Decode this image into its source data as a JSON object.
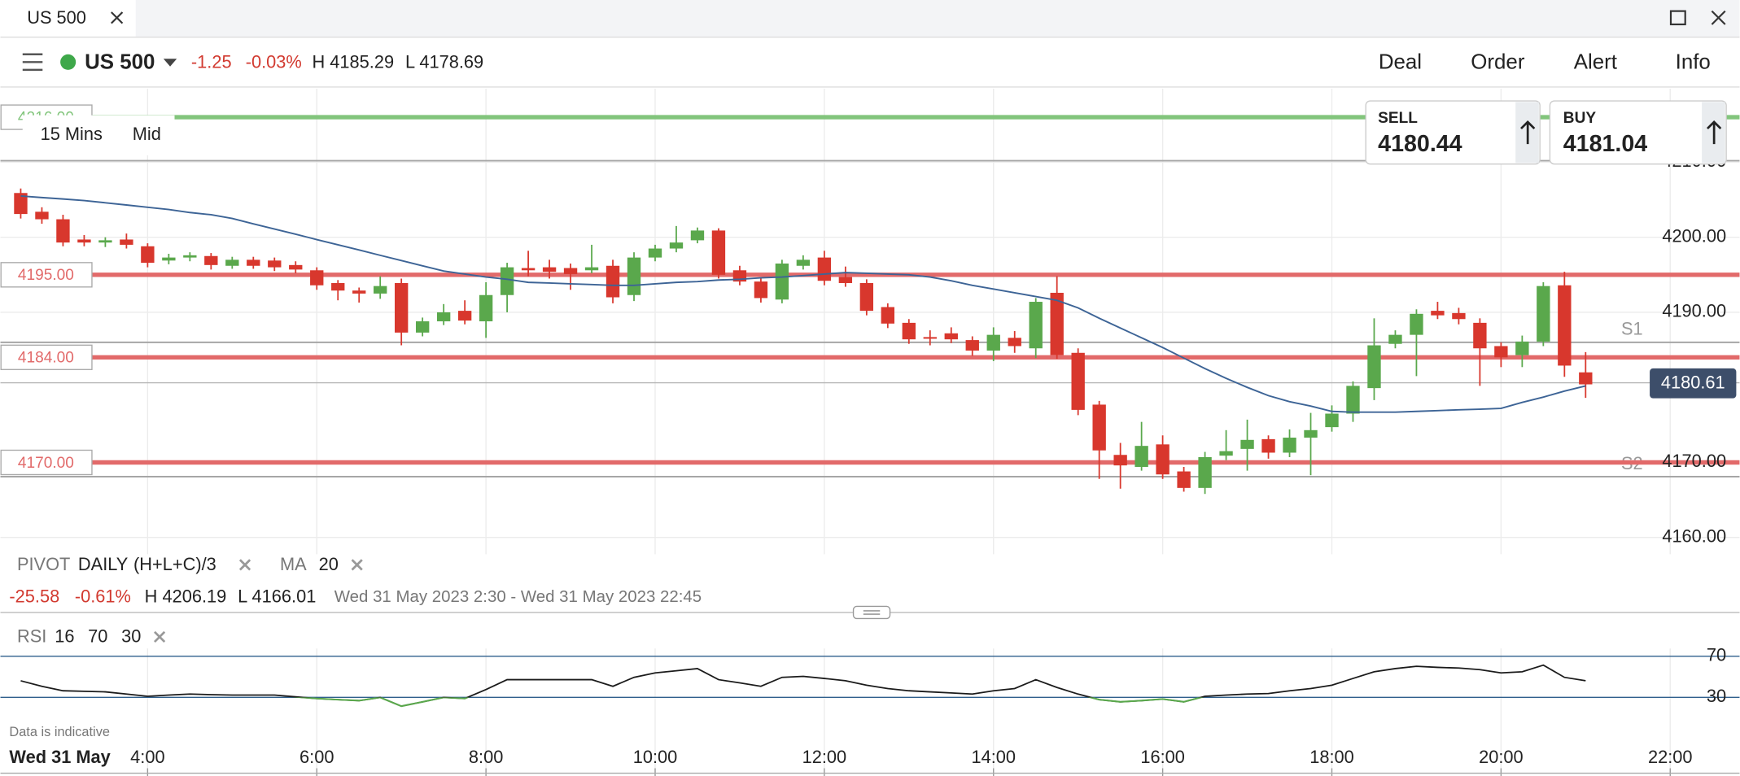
{
  "window": {
    "tab": "US 500"
  },
  "toolbar": {
    "instrument": "US 500",
    "change": "-1.25",
    "change_pct": "-0.03%",
    "high": "H 4185.29",
    "low": "L 4178.69",
    "actions": [
      "Deal",
      "Order",
      "Alert",
      "Info"
    ]
  },
  "chart_settings": {
    "interval": "15 Mins",
    "price_type": "Mid"
  },
  "quotes": {
    "sell_label": "SELL",
    "sell": "4180.44",
    "buy_label": "BUY",
    "buy": "4181.04"
  },
  "indicators": {
    "pivot": "PIVOT",
    "pivot_period": "DAILY",
    "pivot_formula": "(H+L+C)/3",
    "ma": "MA",
    "ma_period": 20
  },
  "summary": {
    "change": "-25.58",
    "change_pct": "-0.61%",
    "high": "H 4206.19",
    "low": "L 4166.01",
    "range": "Wed 31 May 2023 2:30 - Wed 31 May 2023 22:45"
  },
  "disclaimer": "Data is indicative",
  "date_label": "Wed 31 May",
  "chart_data": [
    {
      "type": "candlestick",
      "up_color": "#5aa84c",
      "down_color": "#d8372d",
      "ma_color": "#3d6496",
      "grid": true,
      "x": [
        2.5,
        2.75,
        3,
        3.25,
        3.5,
        3.75,
        4,
        4.25,
        4.5,
        4.75,
        5,
        5.25,
        5.5,
        5.75,
        6,
        6.25,
        6.5,
        6.75,
        7,
        7.25,
        7.5,
        7.75,
        8,
        8.25,
        8.5,
        8.75,
        9,
        9.25,
        9.5,
        9.75,
        10,
        10.25,
        10.5,
        10.75,
        11,
        11.25,
        11.5,
        11.75,
        12,
        12.25,
        12.5,
        12.75,
        13,
        13.25,
        13.5,
        13.75,
        14,
        14.25,
        14.5,
        14.75,
        15,
        15.25,
        15.5,
        15.75,
        16,
        16.25,
        16.5,
        16.75,
        17,
        17.25,
        17.5,
        17.75,
        18,
        18.25,
        18.5,
        18.75,
        19,
        19.25,
        19.5,
        19.75,
        20,
        20.25,
        20.5,
        20.75,
        21
      ],
      "open": [
        4205.9,
        4203.4,
        4202.4,
        4199.7,
        4199.3,
        4199.7,
        4198.8,
        4196.9,
        4197.3,
        4197.5,
        4196.2,
        4197.0,
        4196.9,
        4196.3,
        4195.6,
        4193.9,
        4192.9,
        4192.5,
        4193.9,
        4187.3,
        4188.8,
        4190.2,
        4188.8,
        4192.3,
        4195.9,
        4196.0,
        4195.9,
        4195.6,
        4196.2,
        4192.3,
        4197.3,
        4198.5,
        4199.6,
        4200.9,
        4195.6,
        4194.1,
        4191.7,
        4196.2,
        4197.3,
        4194.7,
        4193.9,
        4190.7,
        4188.6,
        4186.7,
        4187.2,
        4186.3,
        4184.9,
        4186.6,
        4185.2,
        4192.6,
        4184.6,
        4177.7,
        4171.0,
        4169.4,
        4172.4,
        4168.8,
        4166.6,
        4170.9,
        4171.8,
        4173.1,
        4171.3,
        4173.3,
        4174.7,
        4176.5,
        4179.9,
        4185.8,
        4187.0,
        4190.2,
        4189.9,
        4188.6,
        4185.5,
        4184.3,
        4186.1,
        4193.6,
        4182.0
      ],
      "high": [
        4206.5,
        4204,
        4203,
        4200.3,
        4200,
        4200.5,
        4199.2,
        4197.8,
        4198,
        4197.9,
        4197.4,
        4197.4,
        4197.3,
        4196.8,
        4196,
        4194.3,
        4193.3,
        4194.8,
        4194.5,
        4189.3,
        4191.1,
        4191.6,
        4194,
        4196.6,
        4198.2,
        4197,
        4196.5,
        4199,
        4197,
        4198,
        4199,
        4201.5,
        4201.3,
        4201.2,
        4196.2,
        4194.6,
        4197,
        4197.6,
        4198.2,
        4196.1,
        4194.4,
        4191.2,
        4189.1,
        4187.6,
        4188,
        4186.8,
        4188,
        4187.5,
        4191.9,
        4194.8,
        4185.2,
        4178.2,
        4172.6,
        4175.4,
        4173.6,
        4169.4,
        4171.4,
        4174.3,
        4175.7,
        4173.6,
        4174.4,
        4176.6,
        4177.6,
        4180.8,
        4189.2,
        4187.6,
        4190.4,
        4191.4,
        4190.6,
        4189.2,
        4186,
        4186.9,
        4194,
        4195.4,
        4184.7
      ],
      "low": [
        4202.5,
        4201.8,
        4198.8,
        4198.8,
        4198.7,
        4198.5,
        4196,
        4196.4,
        4196.8,
        4195.7,
        4195.8,
        4195.8,
        4195.5,
        4195.2,
        4193,
        4191.6,
        4191.3,
        4191.8,
        4185.6,
        4186.8,
        4188.3,
        4188.4,
        4186.6,
        4190,
        4194.8,
        4194.5,
        4193,
        4195.2,
        4191.2,
        4191.5,
        4196.8,
        4198,
        4199.2,
        4194.5,
        4193.6,
        4191.3,
        4191.2,
        4195.7,
        4193.6,
        4193.4,
        4189.6,
        4187.9,
        4185.8,
        4185.6,
        4185.9,
        4184.2,
        4183.5,
        4184.6,
        4183.9,
        4183.8,
        4176.3,
        4167.8,
        4166.5,
        4168.9,
        4167.8,
        4166.1,
        4165.8,
        4170.3,
        4168.9,
        4170.5,
        4170.7,
        4168.3,
        4174.1,
        4175.4,
        4178.3,
        4185.2,
        4181.5,
        4189.1,
        4188.4,
        4180.2,
        4182.7,
        4182.7,
        4185.5,
        4181.4,
        4178.6
      ],
      "close": [
        4203.1,
        4202.4,
        4199.3,
        4199.3,
        4199.6,
        4199.0,
        4196.6,
        4197.3,
        4197.6,
        4196.3,
        4197.0,
        4196.2,
        4196.0,
        4195.7,
        4193.6,
        4192.9,
        4192.5,
        4193.5,
        4187.3,
        4188.8,
        4190.0,
        4188.9,
        4192.3,
        4196.0,
        4195.6,
        4195.4,
        4195.1,
        4196.0,
        4192.0,
        4197.3,
        4198.5,
        4199.3,
        4200.9,
        4195.0,
        4194.1,
        4191.9,
        4196.5,
        4197.0,
        4194.2,
        4193.9,
        4190.2,
        4188.5,
        4186.4,
        4186.6,
        4186.4,
        4184.9,
        4187.0,
        4185.5,
        4191.4,
        4184.3,
        4177.0,
        4171.6,
        4169.6,
        4172.2,
        4168.4,
        4166.6,
        4170.7,
        4171.5,
        4173.0,
        4171.3,
        4173.3,
        4174.3,
        4176.5,
        4180.2,
        4185.6,
        4187.0,
        4189.8,
        4189.6,
        4189.1,
        4185.2,
        4184.0,
        4186.1,
        4193.5,
        4182.9,
        4180.4
      ],
      "ma": [
        4205.5,
        4205.3,
        4205.1,
        4204.9,
        4204.6,
        4204.3,
        4204.0,
        4203.7,
        4203.3,
        4203.0,
        4202.5,
        4201.8,
        4201.1,
        4200.4,
        4199.7,
        4199.0,
        4198.3,
        4197.6,
        4196.9,
        4196.2,
        4195.5,
        4195.1,
        4194.7,
        4194.4,
        4194.0,
        4193.9,
        4193.8,
        4193.7,
        4193.6,
        4193.6,
        4193.8,
        4194.0,
        4194.1,
        4194.3,
        4194.4,
        4194.6,
        4194.7,
        4194.9,
        4195.1,
        4195.3,
        4195.2,
        4195.1,
        4195.0,
        4194.7,
        4194.2,
        4193.6,
        4193.1,
        4192.6,
        4192.1,
        4191.6,
        4190.6,
        4189.2,
        4187.9,
        4186.6,
        4185.3,
        4183.9,
        4182.5,
        4181.2,
        4180.0,
        4178.9,
        4178.1,
        4177.5,
        4176.8,
        4176.7,
        4176.7,
        4176.7,
        4176.8,
        4176.9,
        4177.0,
        4177.1,
        4177.2,
        4178.0,
        4178.7,
        4179.5,
        4180.2
      ],
      "levels": [
        {
          "value": 4195,
          "label": "4195.00"
        },
        {
          "value": 4184,
          "label": "4184.00"
        },
        {
          "value": 4170,
          "label": "4170.00"
        }
      ],
      "level_color": "#e26a6a",
      "alert": {
        "value": 4216,
        "label": "4216.00"
      },
      "alert_color": "#82c57c",
      "pivots": [
        {
          "value": 4210.2
        },
        {
          "value": 4186,
          "label": "S1"
        },
        {
          "value": 4168.1,
          "label": "S2"
        }
      ],
      "current": {
        "value": 4180.61,
        "label": "4180.61"
      },
      "xlim": [
        2.26,
        22.82
      ],
      "xticks": [
        {
          "value": 4,
          "label": "4:00"
        },
        {
          "value": 6,
          "label": "6:00"
        },
        {
          "value": 8,
          "label": "8:00"
        },
        {
          "value": 10,
          "label": "10:00"
        },
        {
          "value": 12,
          "label": "12:00"
        },
        {
          "value": 14,
          "label": "14:00"
        },
        {
          "value": 16,
          "label": "16:00"
        },
        {
          "value": 18,
          "label": "18:00"
        },
        {
          "value": 20,
          "label": "20:00"
        },
        {
          "value": 22,
          "label": "22:00"
        }
      ],
      "ylim": [
        4158.2,
        4219.8
      ],
      "yticks": [
        {
          "value": 4160,
          "label": "4160.00"
        },
        {
          "value": 4170,
          "label": "4170.00"
        },
        {
          "value": 4190,
          "label": "4190.00"
        },
        {
          "value": 4200,
          "label": "4200.00"
        },
        {
          "value": 4210,
          "label": "4210.00"
        }
      ]
    },
    {
      "type": "line",
      "title": "RSI",
      "period": 16,
      "overbought": 70,
      "oversold": 30,
      "color": "#1b1b1b",
      "low_color": "#5aa84c",
      "level_color": "#2f5f8c",
      "values": [
        46.2,
        40.8,
        36.5,
        35.9,
        35.4,
        33.2,
        31.1,
        32.2,
        33.2,
        32.7,
        32.2,
        32.2,
        32.2,
        30.5,
        28.9,
        27.8,
        26.8,
        30,
        21.4,
        25.7,
        30,
        28.9,
        37.6,
        47.3,
        47.3,
        47.3,
        47.3,
        47.3,
        40.8,
        49.5,
        53.8,
        55.9,
        58.1,
        47.3,
        44.1,
        40.8,
        49.5,
        50.5,
        48.4,
        46.2,
        41.9,
        38.6,
        36.5,
        35.4,
        34.3,
        33.2,
        36.5,
        38.6,
        47.3,
        39.7,
        33.2,
        27.8,
        25.7,
        26.8,
        28.4,
        25.7,
        31.1,
        32.2,
        33.2,
        33.8,
        36.5,
        38.6,
        41.9,
        48.4,
        54.9,
        58.1,
        60.3,
        59.2,
        58.6,
        57,
        53.8,
        54.9,
        61.4,
        49.5,
        46.2
      ],
      "ylim": [
        2,
        77.6
      ],
      "yticks": [
        70,
        30
      ]
    }
  ]
}
